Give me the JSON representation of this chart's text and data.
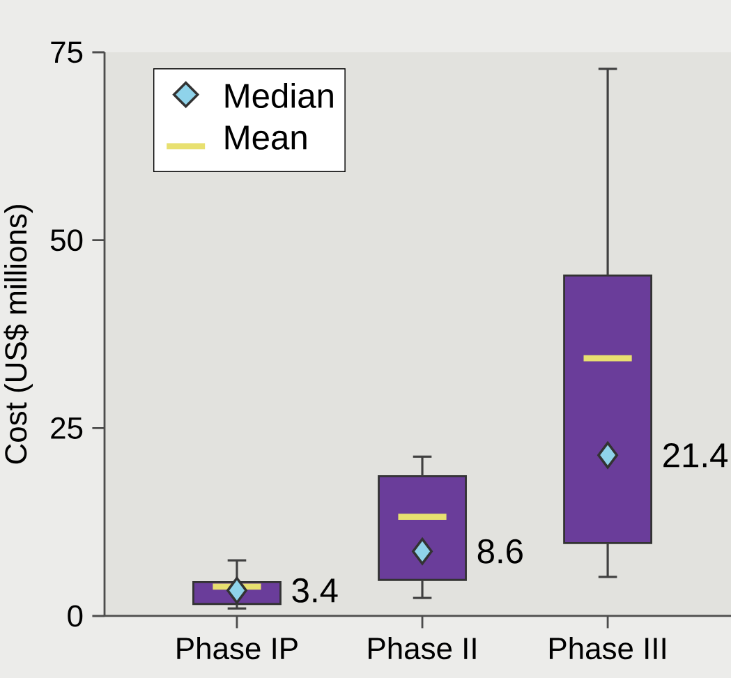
{
  "chart_data": {
    "type": "box",
    "ylabel": "Cost (US$ millions)",
    "categories": [
      "Phase IP",
      "Phase II",
      "Phase III"
    ],
    "boxes": [
      {
        "low": 1.0,
        "q1": 1.6,
        "median": 3.4,
        "q3": 4.5,
        "high": 7.4,
        "mean": 3.9
      },
      {
        "low": 2.4,
        "q1": 4.8,
        "median": 8.6,
        "q3": 18.6,
        "high": 21.2,
        "mean": 13.2
      },
      {
        "low": 5.2,
        "q1": 9.7,
        "median": 21.4,
        "q3": 45.3,
        "high": 72.8,
        "mean": 34.3
      }
    ],
    "color": "#6a3d9a",
    "ylim": [
      0,
      75
    ],
    "yticks": [
      0,
      25,
      50,
      75
    ],
    "annotations": [
      "Median",
      "Mean",
      {
        "text": "3.4",
        "x": "Phase IP",
        "y": 3.4
      },
      {
        "text": "8.6",
        "x": "Phase II",
        "y": 8.6
      },
      {
        "text": "21.4",
        "x": "Phase III",
        "y": 21.4
      }
    ]
  }
}
